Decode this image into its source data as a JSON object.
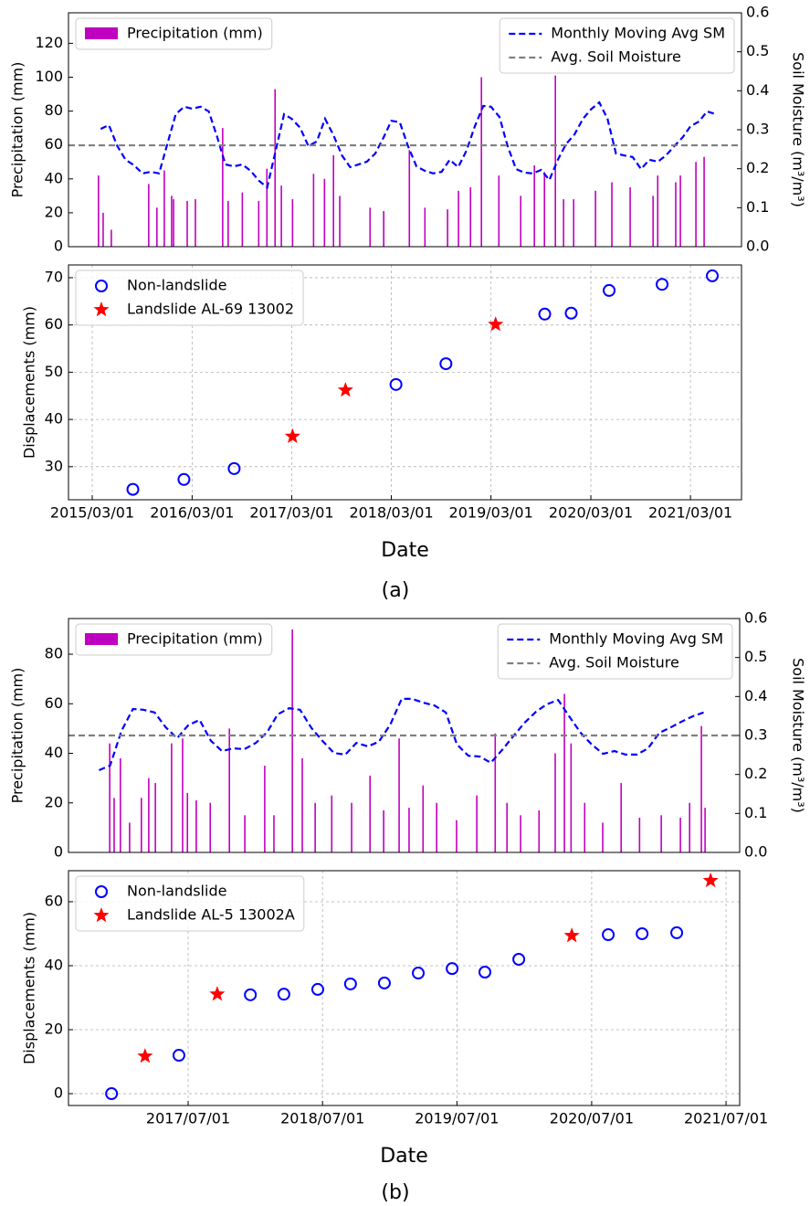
{
  "captions": [
    "(a)",
    "(b)"
  ],
  "chart_data": [
    {
      "type": "bar",
      "y_label": "Precipitation (mm)",
      "y2_label": "Soil Moisture (m³/m³)",
      "xlim": [
        "2014/12/04",
        "2021/09/04"
      ],
      "ylim": [
        0,
        138
      ],
      "yticks": [
        0,
        20,
        40,
        60,
        80,
        100,
        120
      ],
      "y2lim": [
        0,
        0.6
      ],
      "y2ticks": [
        {
          "value": 0,
          "label": "0.0"
        },
        0.1,
        0.2,
        0.3,
        0.4,
        0.5,
        0.6
      ],
      "series": [
        {
          "name": "Precipitation (mm)",
          "type": "bar",
          "color": "#c000c0",
          "legend": "upper left",
          "x": [
            "2015/03/24",
            "2015/04/10",
            "2015/05/10",
            "2015/09/24",
            "2015/10/24",
            "2015/11/20",
            "2015/12/17",
            "2015/12/24",
            "2016/02/12",
            "2016/03/13",
            "2016/06/21",
            "2016/07/11",
            "2016/09/01",
            "2016/10/31",
            "2016/11/30",
            "2016/12/30",
            "2017/01/22",
            "2017/03/04",
            "2017/05/20",
            "2017/06/29",
            "2017/08/01",
            "2017/08/24",
            "2017/12/13",
            "2018/02/01",
            "2018/05/06",
            "2018/07/02",
            "2018/09/23",
            "2018/11/02",
            "2018/12/16",
            "2019/01/25",
            "2019/03/30",
            "2019/06/18",
            "2019/08/07",
            "2019/09/13",
            "2019/10/23",
            "2019/11/22",
            "2019/12/29",
            "2020/03/18",
            "2020/05/17",
            "2020/07/23",
            "2020/10/15",
            "2020/11/01",
            "2021/01/06",
            "2021/01/23",
            "2021/03/21",
            "2021/04/20"
          ],
          "values": [
            42,
            20,
            10,
            37,
            23,
            45,
            30,
            28,
            27,
            28,
            70,
            27,
            32,
            27,
            46,
            93,
            36,
            28,
            43,
            40,
            54,
            30,
            23,
            21,
            57,
            23,
            22,
            33,
            35,
            100,
            42,
            30,
            48,
            44,
            101,
            28,
            28,
            33,
            38,
            35,
            30,
            42,
            38,
            42,
            50,
            53
          ]
        },
        {
          "name": "Monthly Moving Avg SM",
          "type": "line",
          "color": "#0000ff",
          "axis": "y2",
          "legend": "upper right",
          "x": [
            "2015/04/01",
            "2015/05/01",
            "2015/06/01",
            "2015/07/01",
            "2015/08/01",
            "2015/09/01",
            "2015/10/01",
            "2015/11/01",
            "2015/12/01",
            "2016/01/01",
            "2016/02/01",
            "2016/03/01",
            "2016/04/01",
            "2016/05/01",
            "2016/06/01",
            "2016/07/01",
            "2016/08/01",
            "2016/09/01",
            "2016/10/01",
            "2016/11/01",
            "2016/12/01",
            "2017/01/01",
            "2017/02/01",
            "2017/03/01",
            "2017/04/01",
            "2017/05/01",
            "2017/06/01",
            "2017/07/01",
            "2017/08/01",
            "2017/09/01",
            "2017/10/01",
            "2017/11/01",
            "2017/12/01",
            "2018/01/01",
            "2018/02/01",
            "2018/03/01",
            "2018/04/01",
            "2018/05/01",
            "2018/06/01",
            "2018/07/01",
            "2018/08/01",
            "2018/09/01",
            "2018/10/01",
            "2018/11/01",
            "2018/12/01",
            "2019/01/01",
            "2019/02/01",
            "2019/03/01",
            "2019/04/01",
            "2019/05/01",
            "2019/06/01",
            "2019/07/01",
            "2019/08/01",
            "2019/09/01",
            "2019/10/01",
            "2019/11/01",
            "2019/12/01",
            "2020/01/01",
            "2020/02/01",
            "2020/03/01",
            "2020/04/01",
            "2020/05/01",
            "2020/06/01",
            "2020/07/01",
            "2020/08/01",
            "2020/09/01",
            "2020/10/01",
            "2020/11/01",
            "2020/12/01",
            "2021/01/01",
            "2021/02/01",
            "2021/03/01",
            "2021/04/01",
            "2021/05/01",
            "2021/06/01"
          ],
          "values": [
            0.302,
            0.312,
            0.258,
            0.223,
            0.209,
            0.188,
            0.192,
            0.188,
            0.263,
            0.34,
            0.359,
            0.354,
            0.359,
            0.347,
            0.281,
            0.211,
            0.206,
            0.211,
            0.195,
            0.169,
            0.152,
            0.246,
            0.34,
            0.328,
            0.305,
            0.258,
            0.27,
            0.328,
            0.286,
            0.234,
            0.204,
            0.211,
            0.218,
            0.239,
            0.281,
            0.323,
            0.319,
            0.258,
            0.206,
            0.195,
            0.188,
            0.192,
            0.223,
            0.204,
            0.246,
            0.309,
            0.361,
            0.359,
            0.333,
            0.258,
            0.199,
            0.19,
            0.188,
            0.197,
            0.171,
            0.223,
            0.263,
            0.288,
            0.328,
            0.352,
            0.37,
            0.328,
            0.239,
            0.234,
            0.23,
            0.199,
            0.223,
            0.218,
            0.234,
            0.258,
            0.281,
            0.309,
            0.321,
            0.347,
            0.34
          ]
        },
        {
          "name": "Avg. Soil Moisture",
          "type": "hline",
          "color": "#808080",
          "axis": "y2",
          "legend": "upper right",
          "values": [
            0.26
          ]
        }
      ]
    },
    {
      "type": "scatter",
      "x_label": "Date",
      "y_label": "Displacements (mm)",
      "grid": true,
      "legend": "upper left",
      "xlim": [
        "2014/12/04",
        "2021/09/04"
      ],
      "xticks": [
        "2015/03/01",
        "2016/03/01",
        "2017/03/01",
        "2018/03/01",
        "2019/03/01",
        "2020/03/01",
        "2021/03/01"
      ],
      "ylim": [
        23,
        72.7
      ],
      "yticks": [
        30,
        40,
        50,
        60,
        70
      ],
      "series": [
        {
          "name": "Non-landslide",
          "marker": "circle",
          "color": "#0000ff",
          "x": [
            "2015/07/28",
            "2016/01/31",
            "2016/08/02",
            "2018/03/18",
            "2018/09/17",
            "2019/09/14",
            "2019/12/20",
            "2020/05/07",
            "2020/11/17",
            "2021/05/20"
          ],
          "values": [
            25.2,
            27.3,
            29.6,
            47.4,
            51.8,
            62.3,
            62.5,
            67.3,
            68.6,
            70.4
          ]
        },
        {
          "name": "Landslide AL-69 13002",
          "marker": "star",
          "color": "#ff0000",
          "x": [
            "2017/03/04",
            "2017/09/14",
            "2019/03/18"
          ],
          "values": [
            36.4,
            46.2,
            60.1
          ]
        }
      ]
    },
    {
      "type": "bar",
      "y_label": "Precipitation (mm)",
      "y2_label": "Soil Moisture (m³/m³)",
      "xlim": [
        "2016/08/10",
        "2021/08/07"
      ],
      "ylim": [
        0,
        94.4
      ],
      "yticks": [
        0,
        20,
        40,
        60,
        80
      ],
      "y2lim": [
        0,
        0.6
      ],
      "y2ticks": [
        {
          "value": 0,
          "label": "0.0"
        },
        0.1,
        0.2,
        0.3,
        0.4,
        0.5,
        0.6
      ],
      "series": [
        {
          "name": "Precipitation (mm)",
          "type": "bar",
          "color": "#c000c0",
          "legend": "upper left",
          "x": [
            "2016/11/30",
            "2016/12/12",
            "2016/12/29",
            "2017/01/23",
            "2017/02/24",
            "2017/03/16",
            "2017/04/03",
            "2017/05/17",
            "2017/06/16",
            "2017/06/29",
            "2017/07/23",
            "2017/08/30",
            "2017/10/21",
            "2017/12/02",
            "2018/01/25",
            "2018/02/19",
            "2018/04/10",
            "2018/05/07",
            "2018/06/11",
            "2018/07/26",
            "2018/09/18",
            "2018/11/07",
            "2018/12/14",
            "2019/01/25",
            "2019/02/21",
            "2019/03/31",
            "2019/05/07",
            "2019/06/30",
            "2019/08/24",
            "2019/10/13",
            "2019/11/14",
            "2019/12/21",
            "2020/02/09",
            "2020/03/24",
            "2020/04/18",
            "2020/05/06",
            "2020/06/12",
            "2020/07/31",
            "2020/09/19",
            "2020/11/08",
            "2021/01/06",
            "2021/02/27",
            "2021/03/24",
            "2021/04/25",
            "2021/05/05"
          ],
          "values": [
            44,
            22,
            38,
            12,
            22,
            30,
            28,
            44,
            46,
            24,
            21,
            20,
            50,
            15,
            35,
            15,
            90,
            38,
            20,
            23,
            20,
            31,
            17,
            46,
            18,
            27,
            20,
            13,
            23,
            48,
            20,
            15,
            17,
            40,
            64,
            44,
            20,
            12,
            28,
            14,
            15,
            14,
            20,
            51,
            18
          ]
        },
        {
          "name": "Monthly Moving Avg SM",
          "type": "line",
          "color": "#0000ff",
          "axis": "y2",
          "legend": "upper right",
          "x": [
            "2016/11/01",
            "2016/12/01",
            "2017/01/01",
            "2017/02/01",
            "2017/03/01",
            "2017/04/01",
            "2017/05/01",
            "2017/06/01",
            "2017/07/01",
            "2017/08/01",
            "2017/09/01",
            "2017/10/01",
            "2017/11/01",
            "2017/12/01",
            "2018/01/01",
            "2018/02/01",
            "2018/03/01",
            "2018/04/01",
            "2018/05/01",
            "2018/06/01",
            "2018/07/01",
            "2018/08/01",
            "2018/09/01",
            "2018/10/01",
            "2018/11/01",
            "2018/12/01",
            "2019/01/01",
            "2019/02/01",
            "2019/03/01",
            "2019/04/01",
            "2019/05/01",
            "2019/06/01",
            "2019/07/01",
            "2019/08/01",
            "2019/09/01",
            "2019/10/01",
            "2019/11/01",
            "2019/12/01",
            "2020/01/01",
            "2020/02/01",
            "2020/03/01",
            "2020/04/01",
            "2020/05/01",
            "2020/06/01",
            "2020/07/01",
            "2020/08/01",
            "2020/09/01",
            "2020/10/01",
            "2020/11/01",
            "2020/12/01",
            "2021/01/01",
            "2021/02/01",
            "2021/03/01",
            "2021/04/01",
            "2021/05/01"
          ],
          "values": [
            0.211,
            0.223,
            0.312,
            0.368,
            0.366,
            0.359,
            0.321,
            0.293,
            0.326,
            0.34,
            0.286,
            0.26,
            0.267,
            0.265,
            0.281,
            0.309,
            0.354,
            0.37,
            0.366,
            0.319,
            0.286,
            0.255,
            0.251,
            0.281,
            0.272,
            0.284,
            0.328,
            0.394,
            0.394,
            0.384,
            0.377,
            0.359,
            0.277,
            0.248,
            0.246,
            0.23,
            0.263,
            0.298,
            0.333,
            0.361,
            0.38,
            0.391,
            0.349,
            0.307,
            0.277,
            0.253,
            0.26,
            0.251,
            0.251,
            0.267,
            0.307,
            0.321,
            0.335,
            0.349,
            0.359
          ]
        },
        {
          "name": "Avg. Soil Moisture",
          "type": "hline",
          "color": "#808080",
          "axis": "y2",
          "legend": "upper right",
          "values": [
            0.3
          ]
        }
      ]
    },
    {
      "type": "scatter",
      "x_label": "Date",
      "y_label": "Displacements (mm)",
      "grid": true,
      "legend": "upper left",
      "xlim": [
        "2016/08/10",
        "2021/08/07"
      ],
      "xticks": [
        "2017/07/01",
        "2018/07/01",
        "2019/07/01",
        "2020/07/01",
        "2021/07/01"
      ],
      "ylim": [
        -3.7,
        69.7
      ],
      "yticks": [
        0,
        20,
        40,
        60
      ],
      "series": [
        {
          "name": "Non-landslide",
          "marker": "circle",
          "color": "#0000ff",
          "x": [
            "2016/12/05",
            "2017/06/06",
            "2017/12/17",
            "2018/03/18",
            "2018/06/18",
            "2018/09/15",
            "2018/12/16",
            "2019/03/18",
            "2019/06/18",
            "2019/09/15",
            "2019/12/16",
            "2020/08/15",
            "2020/11/15",
            "2021/02/17"
          ],
          "values": [
            0,
            12,
            30.9,
            31.1,
            32.6,
            34.3,
            34.6,
            37.7,
            39.1,
            38,
            42,
            49.7,
            50,
            50.3
          ]
        },
        {
          "name": "Landslide AL-5 13002A",
          "marker": "star",
          "color": "#ff0000",
          "x": [
            "2017/03/06",
            "2017/09/18",
            "2020/05/08",
            "2021/05/20"
          ],
          "values": [
            11.7,
            31.1,
            49.4,
            66.6
          ]
        }
      ]
    }
  ]
}
